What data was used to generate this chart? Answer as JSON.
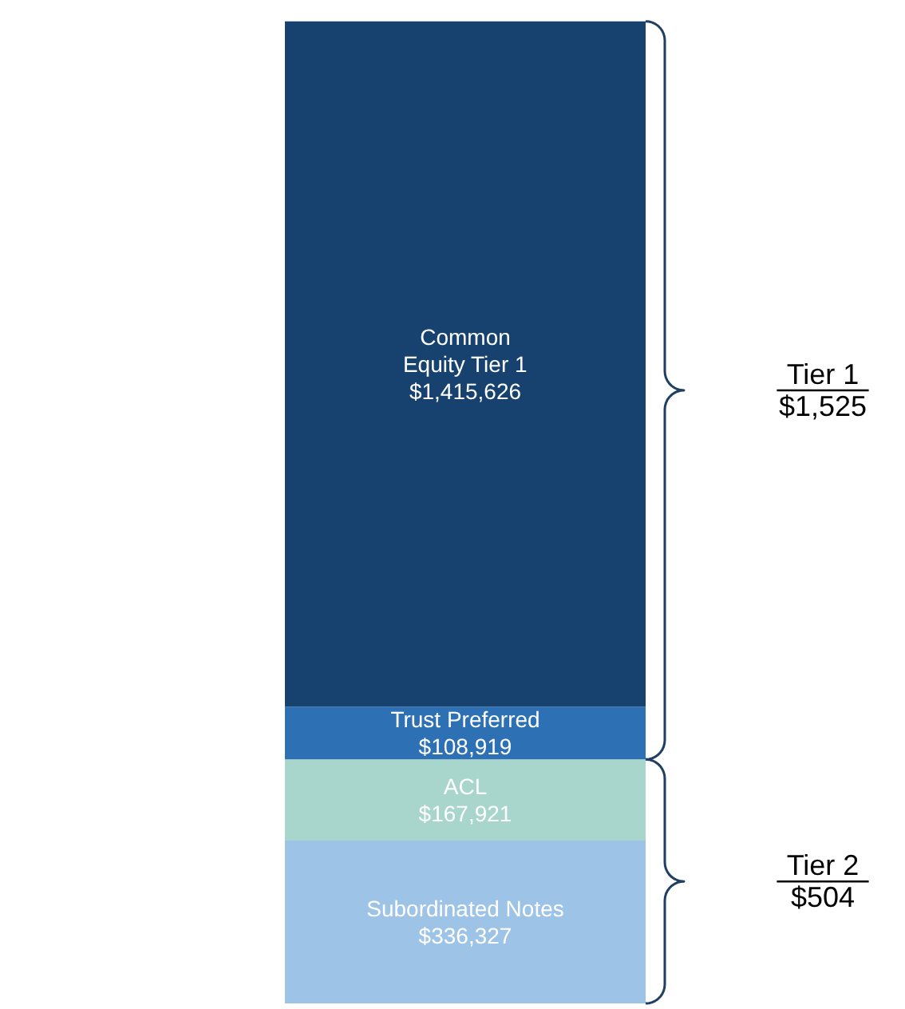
{
  "chart_data": {
    "type": "bar",
    "stacked": true,
    "categories": [
      null
    ],
    "data_labels": true,
    "series": [
      {
        "name": "Subordinated Notes",
        "color": "#9dc3e6",
        "values": [
          336327
        ],
        "value_labels": [
          "$336,327"
        ]
      },
      {
        "name": "ACL",
        "color": "#a8d5cc",
        "values": [
          167921
        ],
        "value_labels": [
          "$167,921"
        ]
      },
      {
        "name": "Trust Preferred",
        "color": "#2e70b4",
        "values": [
          108919
        ],
        "value_labels": [
          "$108,919"
        ]
      },
      {
        "name": "Common\nEquity Tier 1",
        "color": "#17426f",
        "values": [
          1415626
        ],
        "value_labels": [
          "$1,415,626"
        ]
      }
    ],
    "annotations": [
      "Tier 1\n$1,525",
      "Tier 2\n$504"
    ]
  }
}
